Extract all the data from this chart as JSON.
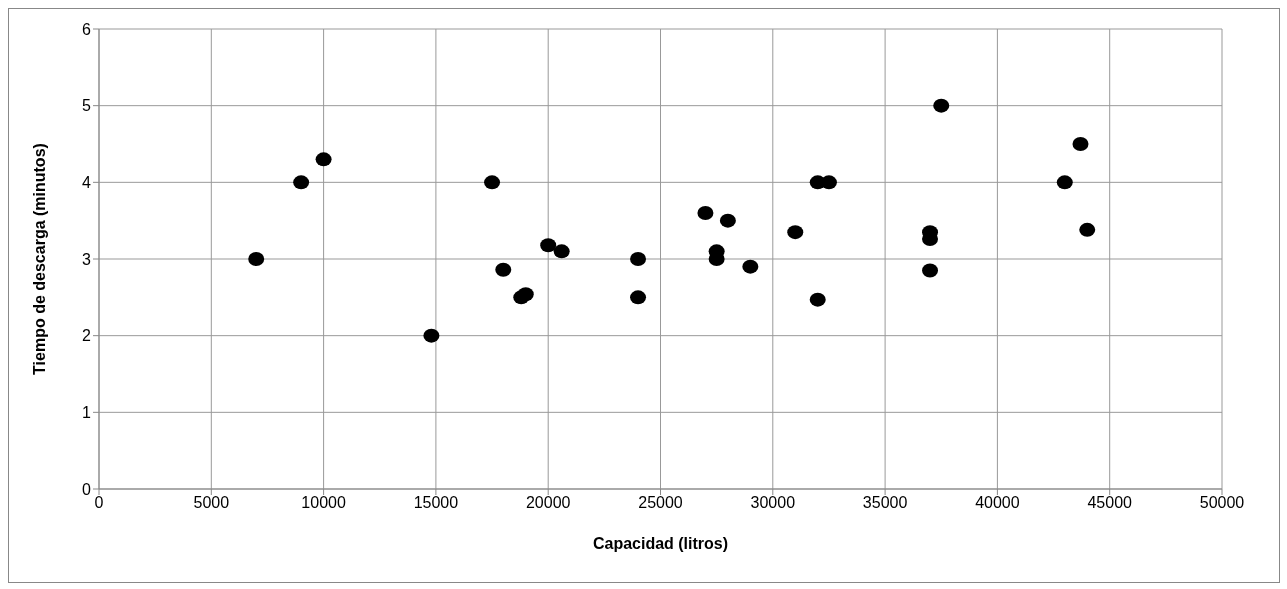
{
  "chart_data": {
    "type": "scatter",
    "xlabel": "Capacidad (litros)",
    "ylabel": "Tiempo de descarga (minutos)",
    "x": [
      7000,
      9000,
      10000,
      14800,
      17500,
      18000,
      18800,
      19000,
      20000,
      20600,
      24000,
      24000,
      27000,
      27500,
      27500,
      28000,
      29000,
      31000,
      32000,
      32500,
      32000,
      37000,
      37000,
      37000,
      37500,
      43000,
      43700,
      44000
    ],
    "series": [
      {
        "color": "#000000",
        "values": [
          3,
          4,
          4.3,
          2,
          4,
          2.86,
          2.5,
          2.54,
          3.18,
          3.1,
          3,
          2.5,
          3.6,
          3.1,
          3,
          3.5,
          2.9,
          3.35,
          4,
          4,
          2.47,
          3.35,
          3.26,
          2.85,
          5,
          4,
          4.5,
          3.38
        ]
      }
    ],
    "xlim": [
      0,
      50000
    ],
    "xticks": [
      0,
      5000,
      10000,
      15000,
      20000,
      25000,
      30000,
      35000,
      40000,
      45000,
      50000
    ],
    "ylim": [
      0,
      6
    ],
    "yticks": [
      0,
      1,
      2,
      3,
      4,
      5,
      6
    ],
    "grid": true,
    "marker": "circle"
  }
}
